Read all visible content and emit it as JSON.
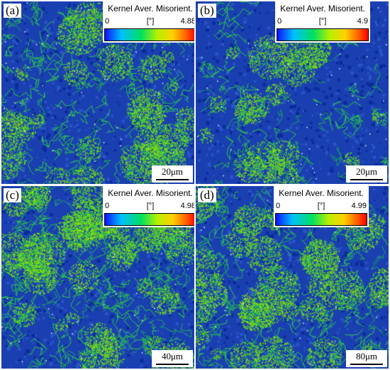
{
  "figure": {
    "panels": [
      {
        "id": "a",
        "label": "(a)",
        "legend": {
          "title": "Kernel Aver. Misorient.",
          "min": "0",
          "unit": "[°]",
          "max": "4.88"
        },
        "scale_label": "20μm",
        "green_fraction": 0.18
      },
      {
        "id": "b",
        "label": "(b)",
        "legend": {
          "title": "Kernel Aver. Misorient.",
          "min": "0",
          "unit": "[°]",
          "max": "4.9"
        },
        "scale_label": "20μm",
        "green_fraction": 0.12
      },
      {
        "id": "c",
        "label": "(c)",
        "legend": {
          "title": "Kernel Aver. Misorient.",
          "min": "0",
          "unit": "[°]",
          "max": "4.98"
        },
        "scale_label": "40μm",
        "green_fraction": 0.28
      },
      {
        "id": "d",
        "label": "(d)",
        "legend": {
          "title": "Kernel Aver. Misorient.",
          "min": "0",
          "unit": "[°]",
          "max": "4.99"
        },
        "scale_label": "80μm",
        "green_fraction": 0.22
      }
    ],
    "colors": {
      "map_base": "#1a3fb0",
      "map_dark": "#0a2a9a",
      "map_green": "#2ec84a",
      "map_lime": "#90e800"
    }
  }
}
